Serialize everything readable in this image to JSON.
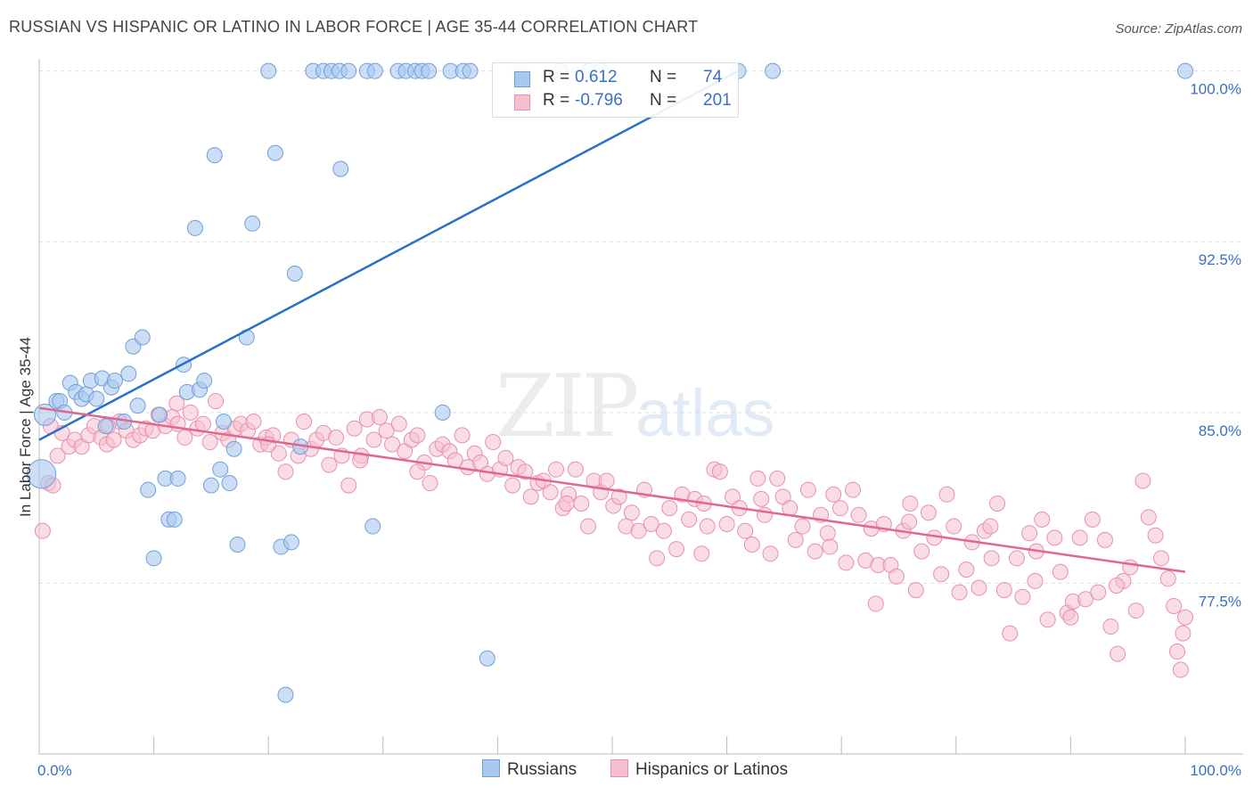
{
  "title": "RUSSIAN VS HISPANIC OR LATINO IN LABOR FORCE | AGE 35-44 CORRELATION CHART",
  "source": "Source: ZipAtlas.com",
  "watermark": {
    "zip": "ZIP",
    "atlas": "atlas"
  },
  "legend": {
    "rows": [
      {
        "r_label": "R =",
        "r_value": "0.612",
        "n_label": "N =",
        "n_value": "74"
      },
      {
        "r_label": "R =",
        "r_value": "-0.796",
        "n_label": "N =",
        "n_value": "201"
      }
    ]
  },
  "bottom_legend": {
    "russians": "Russians",
    "hispanics": "Hispanics or Latinos"
  },
  "colors": {
    "russian_fill": "#a9c8ef",
    "russian_stroke": "#6f9fd8",
    "russian_line": "#2a72c8",
    "hispanic_fill": "#f6bfd0",
    "hispanic_stroke": "#e890ae",
    "hispanic_line": "#e0678f",
    "tick_text": "#3a6fc4"
  },
  "chart_data": {
    "type": "scatter",
    "title": "RUSSIAN VS HISPANIC OR LATINO IN LABOR FORCE | AGE 35-44 CORRELATION CHART",
    "xlabel": "",
    "ylabel": "In Labor Force | Age 35-44",
    "x_tick_labels": [
      "0.0%",
      "100.0%"
    ],
    "y_tick_labels": [
      "77.5%",
      "85.0%",
      "92.5%",
      "100.0%"
    ],
    "y_ticks": [
      77.5,
      85.0,
      92.5,
      100.0
    ],
    "xlim": [
      0,
      100
    ],
    "ylim": [
      70.0,
      100.3
    ],
    "grid": true,
    "series": [
      {
        "name": "Russians",
        "r": 0.612,
        "n": 74,
        "trend": [
          [
            0,
            83.8
          ],
          [
            61,
            100.0
          ]
        ],
        "points": [
          [
            0.2,
            82.3
          ],
          [
            0.5,
            84.9
          ],
          [
            1.5,
            85.5
          ],
          [
            1.8,
            85.5
          ],
          [
            2.2,
            85.0
          ],
          [
            2.7,
            86.3
          ],
          [
            3.2,
            85.9
          ],
          [
            3.7,
            85.6
          ],
          [
            4.1,
            85.8
          ],
          [
            4.5,
            86.4
          ],
          [
            5.0,
            85.6
          ],
          [
            5.5,
            86.5
          ],
          [
            5.8,
            84.4
          ],
          [
            6.3,
            86.1
          ],
          [
            6.6,
            86.4
          ],
          [
            7.4,
            84.6
          ],
          [
            7.8,
            86.7
          ],
          [
            8.2,
            87.9
          ],
          [
            8.6,
            85.3
          ],
          [
            9.0,
            88.3
          ],
          [
            9.5,
            81.6
          ],
          [
            10.0,
            78.6
          ],
          [
            10.5,
            84.9
          ],
          [
            11.0,
            82.1
          ],
          [
            11.3,
            80.3
          ],
          [
            11.8,
            80.3
          ],
          [
            12.1,
            82.1
          ],
          [
            12.6,
            87.1
          ],
          [
            12.9,
            85.9
          ],
          [
            13.6,
            93.1
          ],
          [
            14.0,
            86.0
          ],
          [
            14.4,
            86.4
          ],
          [
            15.0,
            81.8
          ],
          [
            15.3,
            96.3
          ],
          [
            15.8,
            82.5
          ],
          [
            16.1,
            84.6
          ],
          [
            16.6,
            81.9
          ],
          [
            17.0,
            83.4
          ],
          [
            17.3,
            79.2
          ],
          [
            18.1,
            88.3
          ],
          [
            18.6,
            93.3
          ],
          [
            20.0,
            100.0
          ],
          [
            20.6,
            96.4
          ],
          [
            21.1,
            79.1
          ],
          [
            21.5,
            72.6
          ],
          [
            22.0,
            79.3
          ],
          [
            22.3,
            91.1
          ],
          [
            22.8,
            83.5
          ],
          [
            23.9,
            100.0
          ],
          [
            24.8,
            100.0
          ],
          [
            25.5,
            100.0
          ],
          [
            26.2,
            100.0
          ],
          [
            26.3,
            95.7
          ],
          [
            27.0,
            100.0
          ],
          [
            28.6,
            100.0
          ],
          [
            29.3,
            100.0
          ],
          [
            29.1,
            80.0
          ],
          [
            31.3,
            100.0
          ],
          [
            32.0,
            100.0
          ],
          [
            32.8,
            100.0
          ],
          [
            33.4,
            100.0
          ],
          [
            34.0,
            100.0
          ],
          [
            35.2,
            85.0
          ],
          [
            35.9,
            100.0
          ],
          [
            37.0,
            100.0
          ],
          [
            37.6,
            100.0
          ],
          [
            39.1,
            74.2
          ],
          [
            42.0,
            100.0
          ],
          [
            45.5,
            100.0
          ],
          [
            48.0,
            100.0
          ],
          [
            49.0,
            100.0
          ],
          [
            61.0,
            100.0
          ],
          [
            64.0,
            100.0
          ],
          [
            100.0,
            100.0
          ]
        ]
      },
      {
        "name": "Hispanics or Latinos",
        "r": -0.796,
        "n": 201,
        "trend": [
          [
            0,
            85.2
          ],
          [
            100,
            78.0
          ]
        ],
        "points": [
          [
            0.3,
            79.8
          ],
          [
            0.8,
            81.9
          ],
          [
            1.2,
            81.8
          ],
          [
            1.6,
            83.1
          ],
          [
            2.0,
            84.1
          ],
          [
            2.6,
            83.5
          ],
          [
            3.1,
            83.8
          ],
          [
            3.7,
            83.5
          ],
          [
            4.3,
            84.0
          ],
          [
            4.8,
            84.4
          ],
          [
            5.4,
            83.9
          ],
          [
            5.9,
            83.6
          ],
          [
            6.5,
            83.8
          ],
          [
            7.0,
            84.6
          ],
          [
            7.6,
            84.2
          ],
          [
            8.2,
            83.8
          ],
          [
            8.8,
            84.0
          ],
          [
            9.3,
            84.3
          ],
          [
            9.9,
            84.2
          ],
          [
            10.4,
            84.9
          ],
          [
            11.0,
            84.4
          ],
          [
            11.6,
            84.8
          ],
          [
            12.1,
            84.5
          ],
          [
            12.7,
            83.9
          ],
          [
            13.2,
            85.0
          ],
          [
            13.8,
            84.3
          ],
          [
            14.3,
            84.5
          ],
          [
            14.9,
            83.7
          ],
          [
            15.4,
            85.5
          ],
          [
            16.0,
            84.1
          ],
          [
            16.5,
            83.8
          ],
          [
            17.1,
            84.3
          ],
          [
            17.6,
            84.5
          ],
          [
            18.2,
            84.2
          ],
          [
            18.7,
            84.6
          ],
          [
            19.3,
            83.6
          ],
          [
            19.8,
            83.9
          ],
          [
            20.4,
            84.0
          ],
          [
            20.9,
            83.2
          ],
          [
            21.5,
            82.4
          ],
          [
            22.0,
            83.8
          ],
          [
            22.6,
            83.1
          ],
          [
            23.1,
            84.6
          ],
          [
            23.7,
            83.4
          ],
          [
            24.2,
            83.8
          ],
          [
            24.8,
            84.1
          ],
          [
            25.3,
            82.7
          ],
          [
            25.9,
            83.9
          ],
          [
            26.4,
            83.1
          ],
          [
            27.0,
            81.8
          ],
          [
            27.5,
            84.3
          ],
          [
            28.1,
            83.1
          ],
          [
            28.6,
            84.7
          ],
          [
            29.2,
            83.8
          ],
          [
            29.7,
            84.8
          ],
          [
            30.3,
            84.2
          ],
          [
            30.8,
            83.6
          ],
          [
            31.4,
            84.5
          ],
          [
            31.9,
            83.3
          ],
          [
            32.5,
            83.8
          ],
          [
            33.0,
            84.0
          ],
          [
            33.6,
            82.8
          ],
          [
            34.1,
            81.9
          ],
          [
            34.7,
            83.4
          ],
          [
            35.2,
            83.6
          ],
          [
            35.8,
            83.3
          ],
          [
            36.3,
            82.9
          ],
          [
            36.9,
            84.0
          ],
          [
            37.4,
            82.6
          ],
          [
            38.0,
            83.2
          ],
          [
            38.5,
            82.8
          ],
          [
            39.1,
            82.3
          ],
          [
            39.6,
            83.7
          ],
          [
            40.2,
            82.5
          ],
          [
            40.7,
            83.0
          ],
          [
            41.3,
            81.8
          ],
          [
            41.8,
            82.6
          ],
          [
            42.4,
            82.4
          ],
          [
            42.9,
            81.3
          ],
          [
            43.5,
            81.9
          ],
          [
            44.0,
            82.0
          ],
          [
            44.6,
            81.5
          ],
          [
            45.1,
            82.5
          ],
          [
            45.7,
            80.8
          ],
          [
            46.2,
            81.4
          ],
          [
            46.8,
            82.5
          ],
          [
            47.3,
            81.0
          ],
          [
            47.9,
            80.0
          ],
          [
            48.4,
            82.0
          ],
          [
            49.0,
            81.5
          ],
          [
            49.5,
            82.0
          ],
          [
            50.1,
            80.9
          ],
          [
            50.6,
            81.3
          ],
          [
            51.2,
            80.0
          ],
          [
            51.7,
            80.6
          ],
          [
            52.3,
            79.8
          ],
          [
            52.8,
            81.6
          ],
          [
            53.4,
            80.1
          ],
          [
            53.9,
            78.6
          ],
          [
            54.5,
            79.8
          ],
          [
            55.0,
            80.8
          ],
          [
            55.6,
            79.0
          ],
          [
            56.1,
            81.4
          ],
          [
            56.7,
            80.3
          ],
          [
            57.2,
            81.2
          ],
          [
            57.8,
            78.8
          ],
          [
            58.3,
            80.0
          ],
          [
            58.9,
            82.5
          ],
          [
            59.4,
            82.4
          ],
          [
            60.0,
            80.1
          ],
          [
            60.5,
            81.3
          ],
          [
            61.1,
            80.8
          ],
          [
            61.6,
            79.8
          ],
          [
            62.2,
            79.2
          ],
          [
            62.7,
            82.1
          ],
          [
            63.3,
            80.5
          ],
          [
            63.8,
            78.8
          ],
          [
            64.4,
            82.1
          ],
          [
            64.9,
            81.3
          ],
          [
            65.5,
            80.8
          ],
          [
            66.0,
            79.4
          ],
          [
            66.6,
            80.0
          ],
          [
            67.1,
            81.6
          ],
          [
            67.7,
            78.9
          ],
          [
            68.2,
            80.5
          ],
          [
            68.8,
            79.7
          ],
          [
            69.3,
            81.4
          ],
          [
            69.9,
            80.8
          ],
          [
            70.4,
            78.4
          ],
          [
            71.0,
            81.6
          ],
          [
            71.5,
            80.5
          ],
          [
            72.1,
            78.5
          ],
          [
            72.6,
            79.9
          ],
          [
            73.2,
            78.3
          ],
          [
            73.7,
            80.1
          ],
          [
            74.3,
            78.3
          ],
          [
            74.8,
            77.8
          ],
          [
            75.4,
            79.8
          ],
          [
            75.9,
            80.2
          ],
          [
            76.5,
            77.2
          ],
          [
            77.0,
            78.9
          ],
          [
            77.6,
            80.6
          ],
          [
            78.1,
            79.5
          ],
          [
            78.7,
            77.9
          ],
          [
            79.2,
            81.4
          ],
          [
            79.8,
            80.0
          ],
          [
            80.3,
            77.1
          ],
          [
            80.9,
            78.1
          ],
          [
            81.4,
            79.3
          ],
          [
            82.0,
            77.3
          ],
          [
            82.5,
            79.8
          ],
          [
            83.1,
            78.6
          ],
          [
            83.6,
            81.0
          ],
          [
            84.2,
            77.2
          ],
          [
            84.7,
            75.3
          ],
          [
            85.3,
            78.6
          ],
          [
            85.8,
            76.9
          ],
          [
            86.4,
            79.7
          ],
          [
            86.9,
            77.6
          ],
          [
            87.5,
            80.3
          ],
          [
            88.0,
            75.9
          ],
          [
            88.6,
            79.5
          ],
          [
            89.1,
            78.0
          ],
          [
            89.7,
            76.2
          ],
          [
            90.2,
            76.7
          ],
          [
            90.8,
            79.5
          ],
          [
            91.3,
            76.8
          ],
          [
            91.9,
            80.3
          ],
          [
            92.4,
            77.1
          ],
          [
            93.0,
            79.4
          ],
          [
            93.5,
            75.6
          ],
          [
            94.1,
            74.4
          ],
          [
            94.6,
            77.6
          ],
          [
            95.2,
            78.2
          ],
          [
            95.7,
            76.3
          ],
          [
            96.3,
            82.0
          ],
          [
            96.8,
            80.4
          ],
          [
            97.4,
            79.6
          ],
          [
            97.9,
            78.6
          ],
          [
            98.5,
            77.7
          ],
          [
            99.0,
            76.5
          ],
          [
            99.3,
            74.5
          ],
          [
            99.6,
            73.7
          ],
          [
            99.8,
            75.3
          ],
          [
            100.0,
            76.0
          ],
          [
            1.0,
            84.4
          ],
          [
            6.0,
            84.4
          ],
          [
            12.0,
            85.4
          ],
          [
            20.0,
            83.6
          ],
          [
            28.0,
            82.9
          ],
          [
            33.0,
            82.4
          ],
          [
            46.0,
            81.0
          ],
          [
            58.0,
            81.0
          ],
          [
            63.0,
            81.2
          ],
          [
            69.0,
            79.1
          ],
          [
            73.0,
            76.6
          ],
          [
            76.0,
            81.0
          ],
          [
            83.0,
            80.0
          ],
          [
            87.0,
            78.9
          ],
          [
            90.0,
            76.0
          ],
          [
            94.0,
            77.4
          ]
        ]
      }
    ]
  }
}
